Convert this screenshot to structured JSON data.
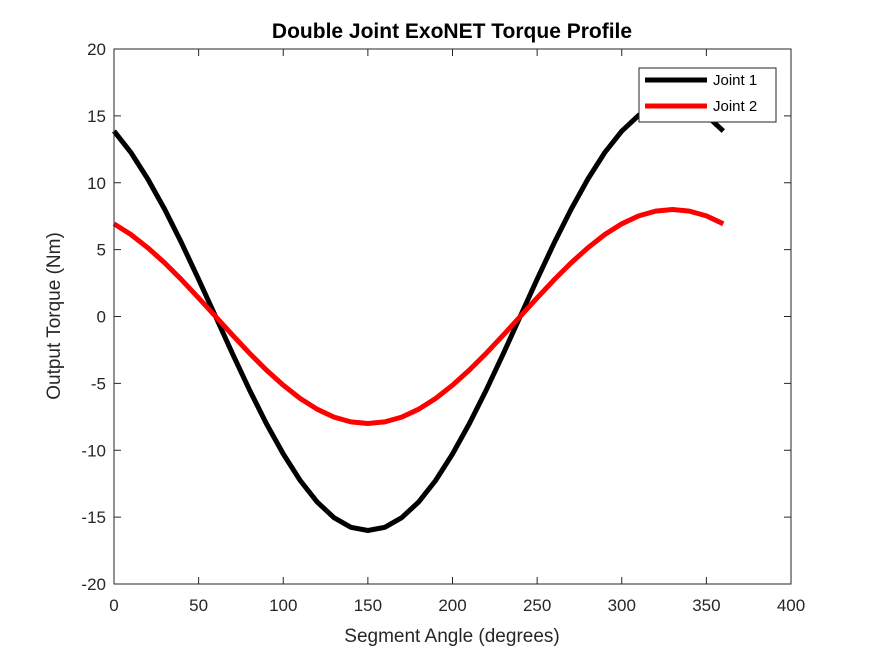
{
  "chart_data": {
    "type": "line",
    "title": "Double Joint ExoNET Torque Profile",
    "xlabel": "Segment Angle (degrees)",
    "ylabel": "Output Torque (Nm)",
    "xlim": [
      0,
      400
    ],
    "ylim": [
      -20,
      20
    ],
    "xticks": [
      0,
      50,
      100,
      150,
      200,
      250,
      300,
      350,
      400
    ],
    "yticks": [
      -20,
      -15,
      -10,
      -5,
      0,
      5,
      10,
      15,
      20
    ],
    "grid": false,
    "legend_position": "top-right",
    "x": [
      0,
      10,
      20,
      30,
      40,
      50,
      60,
      70,
      80,
      90,
      100,
      110,
      120,
      130,
      140,
      150,
      160,
      170,
      180,
      190,
      200,
      210,
      220,
      230,
      240,
      250,
      260,
      270,
      280,
      290,
      300,
      310,
      320,
      330,
      340,
      350,
      360
    ],
    "series": [
      {
        "name": "Joint 1",
        "color": "#000000",
        "values": [
          13.86,
          12.26,
          10.28,
          8.0,
          5.47,
          2.78,
          0.0,
          -2.78,
          -5.47,
          -8.0,
          -10.28,
          -12.26,
          -13.86,
          -15.04,
          -15.76,
          -16.0,
          -15.76,
          -15.04,
          -13.86,
          -12.26,
          -10.28,
          -8.0,
          -5.47,
          -2.78,
          0.0,
          2.78,
          5.47,
          8.0,
          10.28,
          12.26,
          13.86,
          15.04,
          15.76,
          16.0,
          15.76,
          15.04,
          13.86
        ]
      },
      {
        "name": "Joint 2",
        "color": "#ff0000",
        "values": [
          6.93,
          6.13,
          5.14,
          4.0,
          2.74,
          1.39,
          0.0,
          -1.39,
          -2.74,
          -4.0,
          -5.14,
          -6.13,
          -6.93,
          -7.52,
          -7.88,
          -8.0,
          -7.88,
          -7.52,
          -6.93,
          -6.13,
          -5.14,
          -4.0,
          -2.74,
          -1.39,
          0.0,
          1.39,
          2.74,
          4.0,
          5.14,
          6.13,
          6.93,
          7.52,
          7.88,
          8.0,
          7.88,
          7.52,
          6.93
        ]
      }
    ]
  }
}
